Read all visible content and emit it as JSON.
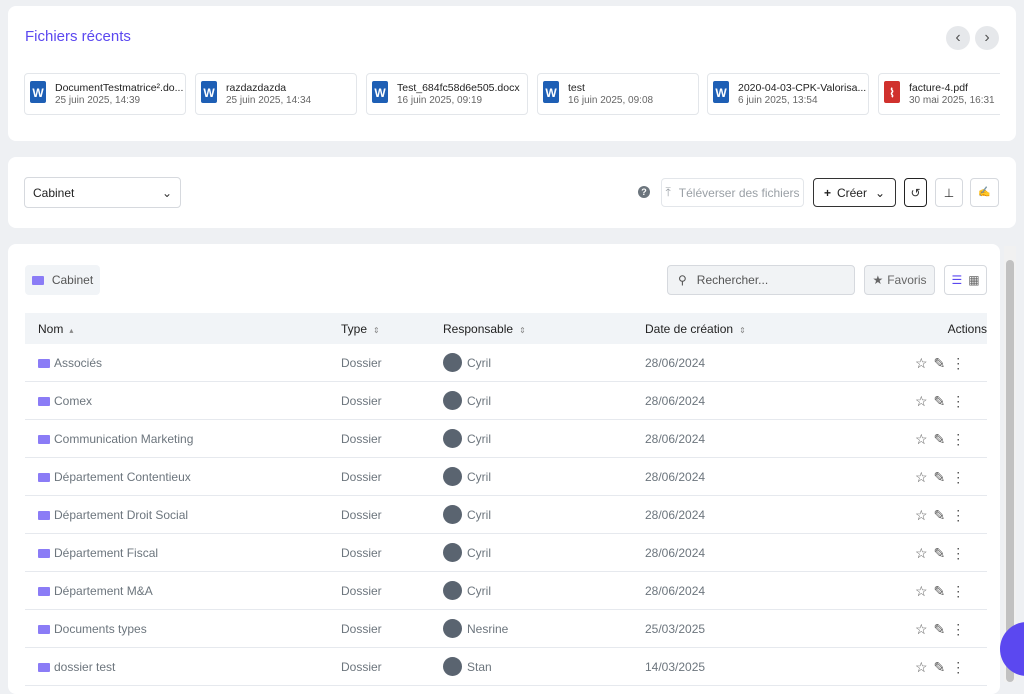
{
  "recent": {
    "title": "Fichiers récents",
    "files": [
      {
        "name": "DocumentTestmatrice².do...",
        "date": "25 juin 2025, 14:39"
      },
      {
        "name": "razdazdazda",
        "date": "25 juin 2025, 14:34"
      },
      {
        "name": "Test_684fc58d6e505.docx",
        "date": "16 juin 2025, 09:19"
      },
      {
        "name": "test",
        "date": "16 juin 2025, 09:08"
      },
      {
        "name": "2020-04-03-CPK-Valorisa...",
        "date": "6 juin 2025, 13:54"
      },
      {
        "name": "facture-4.pdf",
        "date": "30 mai 2025, 16:31"
      }
    ]
  },
  "toolbar": {
    "select": "Cabinet",
    "upload": "Téléverser des fichiers",
    "create": "Créer"
  },
  "browser": {
    "breadcrumb": "Cabinet",
    "search": "Rechercher...",
    "favorites": "Favoris",
    "table": {
      "headers": [
        "Nom",
        "Type",
        "Responsable",
        "Date de création",
        "Actions"
      ],
      "rows": [
        [
          "Associés",
          "Dossier",
          "Cyril",
          "28/06/2024"
        ],
        [
          "Comex",
          "Dossier",
          "Cyril",
          "28/06/2024"
        ],
        [
          "Communication Marketing",
          "Dossier",
          "Cyril",
          "28/06/2024"
        ],
        [
          "Département Contentieux",
          "Dossier",
          "Cyril",
          "28/06/2024"
        ],
        [
          "Département Droit Social",
          "Dossier",
          "Cyril",
          "28/06/2024"
        ],
        [
          "Département Fiscal",
          "Dossier",
          "Cyril",
          "28/06/2024"
        ],
        [
          "Département M&A",
          "Dossier",
          "Cyril",
          "28/06/2024"
        ],
        [
          "Documents types",
          "Dossier",
          "Nesrine",
          "25/03/2025"
        ],
        [
          "dossier test",
          "Dossier",
          "Stan",
          "14/03/2025"
        ]
      ]
    }
  }
}
